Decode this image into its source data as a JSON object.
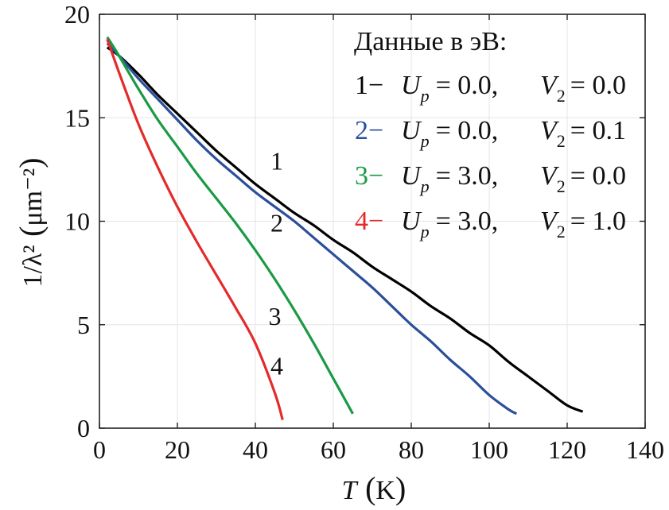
{
  "chart_data": {
    "type": "line",
    "xlabel_var": "T",
    "xlabel_unit": "K",
    "ylabel_text": "1/λ²",
    "ylabel_unit": "μm⁻²",
    "xlim": [
      0,
      140
    ],
    "ylim": [
      0,
      20
    ],
    "xticks": [
      "0",
      "20",
      "40",
      "60",
      "80",
      "100",
      "120",
      "140"
    ],
    "yticks": [
      "0",
      "5",
      "10",
      "15",
      "20"
    ],
    "grid": true,
    "legend_position": "top-right",
    "legend_title": "Данные в эВ:",
    "series": [
      {
        "name": "1",
        "color": "#000000",
        "legend_text": "1− U_p = 0.0, V_2 = 0.0",
        "legend_up": "0.0",
        "legend_v2": "0.0",
        "points": [
          [
            2,
            18.4
          ],
          [
            5,
            18.0
          ],
          [
            10,
            17.1
          ],
          [
            15,
            16.1
          ],
          [
            20,
            15.2
          ],
          [
            25,
            14.3
          ],
          [
            30,
            13.4
          ],
          [
            35,
            12.6
          ],
          [
            40,
            11.8
          ],
          [
            45,
            11.1
          ],
          [
            50,
            10.4
          ],
          [
            55,
            9.8
          ],
          [
            60,
            9.1
          ],
          [
            65,
            8.5
          ],
          [
            70,
            7.8
          ],
          [
            75,
            7.2
          ],
          [
            80,
            6.6
          ],
          [
            85,
            5.9
          ],
          [
            90,
            5.3
          ],
          [
            95,
            4.6
          ],
          [
            100,
            4.0
          ],
          [
            105,
            3.2
          ],
          [
            110,
            2.5
          ],
          [
            115,
            1.8
          ],
          [
            120,
            1.1
          ],
          [
            124,
            0.8
          ]
        ]
      },
      {
        "name": "2",
        "color": "#2c4f9a",
        "legend_text": "2− U_p = 0.0, V_2 = 0.1",
        "legend_up": "0.0",
        "legend_v2": "0.1",
        "points": [
          [
            2,
            18.6
          ],
          [
            5,
            18.0
          ],
          [
            10,
            16.9
          ],
          [
            15,
            15.9
          ],
          [
            20,
            14.9
          ],
          [
            25,
            13.9
          ],
          [
            30,
            13.0
          ],
          [
            35,
            12.2
          ],
          [
            40,
            11.4
          ],
          [
            45,
            10.7
          ],
          [
            50,
            10.0
          ],
          [
            55,
            9.2
          ],
          [
            60,
            8.4
          ],
          [
            65,
            7.6
          ],
          [
            70,
            6.8
          ],
          [
            75,
            5.9
          ],
          [
            80,
            5.0
          ],
          [
            85,
            4.2
          ],
          [
            90,
            3.3
          ],
          [
            95,
            2.5
          ],
          [
            100,
            1.6
          ],
          [
            105,
            0.9
          ],
          [
            107,
            0.7
          ]
        ]
      },
      {
        "name": "3",
        "color": "#1a9a45",
        "legend_text": "3− U_p = 3.0, V_2 = 0.0",
        "legend_up": "3.0",
        "legend_v2": "0.0",
        "points": [
          [
            2,
            18.9
          ],
          [
            5,
            18.0
          ],
          [
            10,
            16.4
          ],
          [
            15,
            14.9
          ],
          [
            20,
            13.6
          ],
          [
            25,
            12.3
          ],
          [
            30,
            11.1
          ],
          [
            35,
            9.9
          ],
          [
            40,
            8.6
          ],
          [
            45,
            7.2
          ],
          [
            50,
            5.7
          ],
          [
            55,
            4.1
          ],
          [
            60,
            2.4
          ],
          [
            65,
            0.7
          ]
        ]
      },
      {
        "name": "4",
        "color": "#e32b2b",
        "legend_text": "4− U_p = 3.0, V_2 = 1.0",
        "legend_up": "3.0",
        "legend_v2": "1.0",
        "points": [
          [
            2,
            18.8
          ],
          [
            5,
            17.2
          ],
          [
            10,
            14.7
          ],
          [
            15,
            12.6
          ],
          [
            20,
            10.7
          ],
          [
            25,
            9.0
          ],
          [
            30,
            7.4
          ],
          [
            35,
            5.8
          ],
          [
            40,
            4.1
          ],
          [
            45,
            1.7
          ],
          [
            47,
            0.4
          ]
        ]
      }
    ],
    "curve_labels": [
      {
        "text": "1",
        "x": 45.5,
        "y": 12.5
      },
      {
        "text": "2",
        "x": 45.5,
        "y": 9.5
      },
      {
        "text": "3",
        "x": 45.0,
        "y": 5.0
      },
      {
        "text": "4",
        "x": 45.5,
        "y": 2.6
      }
    ]
  }
}
